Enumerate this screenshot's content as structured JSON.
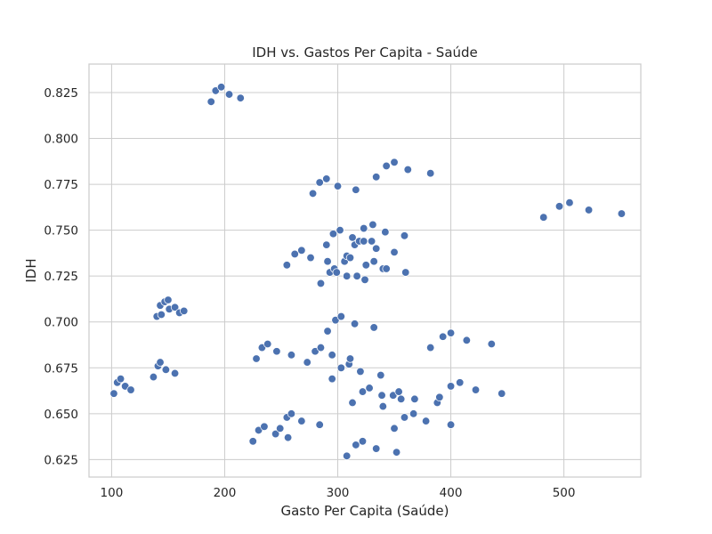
{
  "chart_data": {
    "type": "scatter",
    "title": "IDH vs. Gastos Per Capita - Saúde",
    "xlabel": "Gasto Per Capita (Saúde)",
    "ylabel": "IDH",
    "xlim": [
      80,
      568
    ],
    "ylim": [
      0.6155,
      0.8405
    ],
    "xticks": [
      100,
      200,
      300,
      400,
      500
    ],
    "xtick_labels": [
      "100",
      "200",
      "300",
      "400",
      "500"
    ],
    "yticks": [
      0.625,
      0.65,
      0.675,
      0.7,
      0.725,
      0.75,
      0.775,
      0.8,
      0.825
    ],
    "ytick_labels": [
      "0.625",
      "0.650",
      "0.675",
      "0.700",
      "0.725",
      "0.750",
      "0.775",
      "0.800",
      "0.825"
    ],
    "grid": true,
    "color": "#4c72b0",
    "points": [
      [
        188,
        0.82
      ],
      [
        192,
        0.826
      ],
      [
        197,
        0.828
      ],
      [
        204,
        0.824
      ],
      [
        214,
        0.822
      ],
      [
        278,
        0.77
      ],
      [
        284,
        0.776
      ],
      [
        290,
        0.778
      ],
      [
        300,
        0.774
      ],
      [
        316,
        0.772
      ],
      [
        334,
        0.779
      ],
      [
        343,
        0.785
      ],
      [
        350,
        0.787
      ],
      [
        362,
        0.783
      ],
      [
        382,
        0.781
      ],
      [
        482,
        0.757
      ],
      [
        496,
        0.763
      ],
      [
        505,
        0.765
      ],
      [
        522,
        0.761
      ],
      [
        551,
        0.759
      ],
      [
        255,
        0.731
      ],
      [
        262,
        0.737
      ],
      [
        268,
        0.739
      ],
      [
        276,
        0.735
      ],
      [
        285,
        0.721
      ],
      [
        290,
        0.742
      ],
      [
        291,
        0.733
      ],
      [
        293,
        0.727
      ],
      [
        296,
        0.748
      ],
      [
        297,
        0.729
      ],
      [
        299,
        0.727
      ],
      [
        302,
        0.75
      ],
      [
        306,
        0.733
      ],
      [
        308,
        0.736
      ],
      [
        308,
        0.725
      ],
      [
        311,
        0.735
      ],
      [
        313,
        0.746
      ],
      [
        315,
        0.742
      ],
      [
        317,
        0.725
      ],
      [
        319,
        0.744
      ],
      [
        323,
        0.744
      ],
      [
        323,
        0.751
      ],
      [
        324,
        0.723
      ],
      [
        325,
        0.731
      ],
      [
        330,
        0.744
      ],
      [
        331,
        0.753
      ],
      [
        332,
        0.733
      ],
      [
        334,
        0.74
      ],
      [
        340,
        0.729
      ],
      [
        342,
        0.749
      ],
      [
        343,
        0.729
      ],
      [
        350,
        0.738
      ],
      [
        359,
        0.747
      ],
      [
        360,
        0.727
      ],
      [
        140,
        0.703
      ],
      [
        143,
        0.709
      ],
      [
        144,
        0.704
      ],
      [
        147,
        0.711
      ],
      [
        150,
        0.712
      ],
      [
        151,
        0.707
      ],
      [
        156,
        0.708
      ],
      [
        160,
        0.705
      ],
      [
        164,
        0.706
      ],
      [
        102,
        0.661
      ],
      [
        105,
        0.667
      ],
      [
        108,
        0.669
      ],
      [
        112,
        0.665
      ],
      [
        117,
        0.663
      ],
      [
        137,
        0.67
      ],
      [
        141,
        0.676
      ],
      [
        143,
        0.678
      ],
      [
        148,
        0.674
      ],
      [
        156,
        0.672
      ],
      [
        228,
        0.68
      ],
      [
        233,
        0.686
      ],
      [
        238,
        0.688
      ],
      [
        246,
        0.684
      ],
      [
        259,
        0.682
      ],
      [
        273,
        0.678
      ],
      [
        280,
        0.684
      ],
      [
        285,
        0.686
      ],
      [
        291,
        0.695
      ],
      [
        295,
        0.682
      ],
      [
        295,
        0.669
      ],
      [
        298,
        0.701
      ],
      [
        303,
        0.703
      ],
      [
        303,
        0.675
      ],
      [
        310,
        0.677
      ],
      [
        311,
        0.68
      ],
      [
        313,
        0.656
      ],
      [
        315,
        0.699
      ],
      [
        320,
        0.673
      ],
      [
        322,
        0.662
      ],
      [
        328,
        0.664
      ],
      [
        332,
        0.697
      ],
      [
        338,
        0.671
      ],
      [
        339,
        0.66
      ],
      [
        340,
        0.654
      ],
      [
        349,
        0.66
      ],
      [
        354,
        0.662
      ],
      [
        356,
        0.658
      ],
      [
        359,
        0.648
      ],
      [
        367,
        0.65
      ],
      [
        368,
        0.658
      ],
      [
        378,
        0.646
      ],
      [
        382,
        0.686
      ],
      [
        388,
        0.656
      ],
      [
        390,
        0.659
      ],
      [
        393,
        0.692
      ],
      [
        400,
        0.694
      ],
      [
        400,
        0.665
      ],
      [
        400,
        0.644
      ],
      [
        408,
        0.667
      ],
      [
        414,
        0.69
      ],
      [
        422,
        0.663
      ],
      [
        436,
        0.688
      ],
      [
        445,
        0.661
      ],
      [
        225,
        0.635
      ],
      [
        230,
        0.641
      ],
      [
        235,
        0.643
      ],
      [
        245,
        0.639
      ],
      [
        249,
        0.642
      ],
      [
        255,
        0.648
      ],
      [
        256,
        0.637
      ],
      [
        259,
        0.65
      ],
      [
        268,
        0.646
      ],
      [
        284,
        0.644
      ],
      [
        308,
        0.627
      ],
      [
        316,
        0.633
      ],
      [
        322,
        0.635
      ],
      [
        334,
        0.631
      ],
      [
        350,
        0.642
      ],
      [
        352,
        0.629
      ]
    ]
  }
}
